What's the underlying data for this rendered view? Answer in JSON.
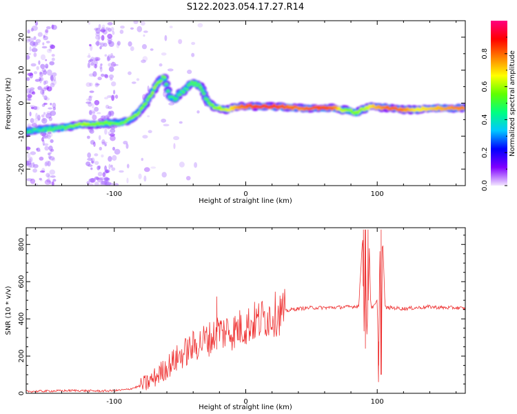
{
  "title": "S122.2023.054.17.27.R14",
  "chart_data": [
    {
      "type": "heatmap",
      "title": "S122.2023.054.17.27.R14",
      "xlabel": "Height of straight line (km)",
      "ylabel": "Frequency (Hz)",
      "xlim": [
        -167,
        167
      ],
      "ylim": [
        -25,
        25
      ],
      "xticks": [
        -100,
        0,
        100
      ],
      "yticks": [
        -20,
        -10,
        0,
        10,
        20
      ],
      "colorbar": {
        "label": "Normalized spectral amplitude",
        "range": [
          0,
          1
        ],
        "ticks": [
          "0.0",
          "0.2",
          "0.4",
          "0.6",
          "0.8"
        ],
        "colors": [
          "#f2e6ff",
          "#8000ff",
          "#0000ff",
          "#00c8ff",
          "#00ff80",
          "#60ff00",
          "#ffff00",
          "#ff8000",
          "#ff0000",
          "#ff0080"
        ]
      },
      "ridge": {
        "x": [
          -167,
          -155,
          -140,
          -125,
          -115,
          -105,
          -95,
          -88,
          -82,
          -76,
          -70,
          -66,
          -62,
          -58,
          -54,
          -50,
          -46,
          -42,
          -38,
          -34,
          -30,
          -25,
          -20,
          -15,
          -10,
          -5,
          0,
          10,
          20,
          30,
          40,
          50,
          60,
          68,
          72,
          76,
          80,
          84,
          88,
          92,
          96,
          100,
          110,
          120,
          130,
          140,
          150,
          160,
          167
        ],
        "y": [
          -8.5,
          -8,
          -7.5,
          -6.5,
          -6.5,
          -6,
          -6,
          -5,
          -3,
          0,
          4,
          6.5,
          8,
          2,
          1,
          3,
          4,
          6,
          6,
          5,
          1,
          -1,
          -1.5,
          -2,
          -1.5,
          -1,
          -1,
          -1,
          -1,
          -1.2,
          -1.5,
          -1.5,
          -1.5,
          -1.5,
          -2,
          -2,
          -2.5,
          -3,
          -2,
          -1.5,
          -1,
          -1.2,
          -1.5,
          -2,
          -2,
          -1.5,
          -1.5,
          -1.5,
          -1.5
        ],
        "amplitude": [
          0.3,
          0.35,
          0.4,
          0.55,
          0.5,
          0.45,
          0.45,
          0.5,
          0.5,
          0.45,
          0.5,
          0.5,
          0.45,
          0.35,
          0.3,
          0.35,
          0.35,
          0.4,
          0.4,
          0.4,
          0.4,
          0.5,
          0.55,
          0.6,
          0.7,
          0.8,
          0.85,
          0.9,
          0.9,
          0.85,
          0.8,
          0.85,
          0.9,
          0.8,
          0.6,
          0.55,
          0.5,
          0.5,
          0.55,
          0.6,
          0.7,
          0.75,
          0.85,
          0.8,
          0.65,
          0.7,
          0.75,
          0.8,
          0.8
        ]
      },
      "noise_bands_x": [
        [
          -167,
          -145
        ],
        [
          -120,
          -100
        ]
      ]
    },
    {
      "type": "line",
      "title": "",
      "xlabel": "Height of straight line (km)",
      "ylabel": "SNR (10 * v/v)",
      "xlim": [
        -167,
        167
      ],
      "ylim": [
        0,
        890
      ],
      "xticks": [
        -100,
        0,
        100
      ],
      "yticks": [
        0,
        200,
        400,
        600,
        800
      ],
      "series": [
        {
          "name": "SNR",
          "color": "#ee3030",
          "x": [
            -167,
            -150,
            -130,
            -110,
            -100,
            -90,
            -85,
            -80,
            -75,
            -70,
            -65,
            -60,
            -55,
            -50,
            -45,
            -40,
            -35,
            -30,
            -25,
            -22,
            -20,
            -18,
            -15,
            -10,
            -5,
            0,
            5,
            10,
            15,
            20,
            25,
            30,
            35,
            40,
            50,
            60,
            70,
            80,
            86,
            89,
            90,
            91,
            92,
            93,
            94,
            95,
            96,
            98,
            100,
            101,
            102,
            103,
            104,
            106,
            110,
            120,
            130,
            140,
            150,
            160,
            167
          ],
          "y": [
            10,
            12,
            15,
            12,
            14,
            20,
            30,
            40,
            55,
            80,
            110,
            140,
            170,
            200,
            225,
            250,
            270,
            290,
            300,
            330,
            350,
            320,
            340,
            330,
            350,
            360,
            380,
            390,
            410,
            420,
            430,
            440,
            450,
            455,
            460,
            460,
            462,
            465,
            470,
            860,
            300,
            880,
            260,
            500,
            780,
            480,
            460,
            470,
            500,
            150,
            840,
            100,
            860,
            460,
            460,
            455,
            460,
            465,
            460,
            460,
            455
          ]
        }
      ],
      "spikes": [
        {
          "x": -22,
          "y": 520
        },
        {
          "x": 89.5,
          "y": 880
        },
        {
          "x": 91,
          "y": 240
        },
        {
          "x": 93,
          "y": 880
        },
        {
          "x": 101,
          "y": 60
        },
        {
          "x": 103,
          "y": 880
        }
      ]
    }
  ]
}
